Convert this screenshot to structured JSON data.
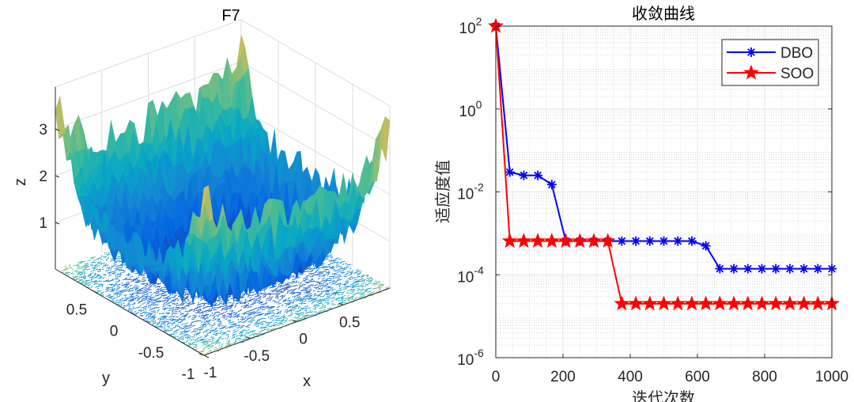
{
  "chart_data": [
    {
      "type": "surface",
      "title": "F7",
      "xlabel": "x",
      "ylabel": "y",
      "zlabel": "z",
      "xlim": [
        -1,
        1
      ],
      "ylim": [
        -1,
        1
      ],
      "zlim": [
        0,
        3.9
      ],
      "x_ticks": [
        "-1",
        "-0.5",
        "0",
        "0.5"
      ],
      "y_ticks": [
        "-1",
        "-0.5",
        "0",
        "0.5"
      ],
      "z_ticks": [
        "1",
        "2",
        "3"
      ],
      "function": "x^4 + 2*y^4 + rand",
      "colormap": "parula",
      "contour_on_floor": true
    },
    {
      "type": "line",
      "title": "收敛曲线",
      "xlabel": "迭代次数",
      "ylabel": "适应度值",
      "yscale": "log",
      "xlim": [
        0,
        1000
      ],
      "ylim": [
        1e-06,
        100
      ],
      "x_ticks": [
        "0",
        "200",
        "400",
        "600",
        "800",
        "1000"
      ],
      "y_ticks": [
        {
          "base": "10",
          "exp": "2",
          "value": 100
        },
        {
          "base": "10",
          "exp": "0",
          "value": 1
        },
        {
          "base": "10",
          "exp": "-2",
          "value": 0.01
        },
        {
          "base": "10",
          "exp": "-4",
          "value": 0.0001
        },
        {
          "base": "10",
          "exp": "-6",
          "value": 1e-06
        }
      ],
      "grid": "major+minor",
      "legend_position": "top-right",
      "x": [
        0,
        41.7,
        83.3,
        125,
        166.7,
        208.3,
        250,
        291.7,
        333.3,
        375,
        416.7,
        458.3,
        500,
        541.7,
        583.3,
        625,
        666.7,
        708.3,
        750,
        791.7,
        833.3,
        875,
        916.7,
        958.3,
        1000
      ],
      "series": [
        {
          "name": "DBO",
          "color": "#0000ff",
          "marker": "asterisk",
          "values": [
            100,
            0.03,
            0.025,
            0.025,
            0.015,
            0.00065,
            0.00065,
            0.00065,
            0.00065,
            0.00065,
            0.00065,
            0.00065,
            0.00065,
            0.00065,
            0.00065,
            0.0005,
            0.00014,
            0.00014,
            0.00014,
            0.00014,
            0.00014,
            0.00014,
            0.00014,
            0.00014,
            0.00014
          ]
        },
        {
          "name": "SOO",
          "color": "#ff0000",
          "marker": "pentagram",
          "values": [
            100,
            0.00065,
            0.00065,
            0.00065,
            0.00065,
            0.00065,
            0.00065,
            0.00065,
            0.00065,
            2e-05,
            2e-05,
            2e-05,
            2e-05,
            2e-05,
            2e-05,
            2e-05,
            2e-05,
            2e-05,
            2e-05,
            2e-05,
            2e-05,
            2e-05,
            2e-05,
            2e-05,
            2e-05
          ]
        }
      ]
    }
  ]
}
